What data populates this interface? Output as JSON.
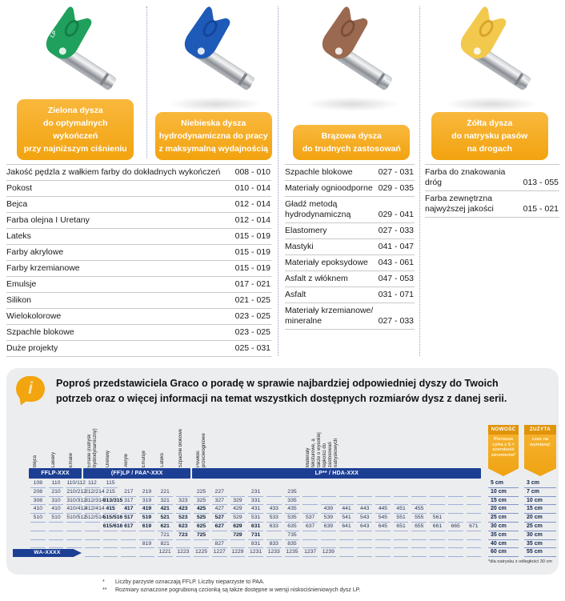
{
  "colors": {
    "accent_orange": "#F2A30F",
    "band_navy": "#1C3F94",
    "table_line_blue": "#9FB2D8",
    "panel_gray": "#ECEDEF"
  },
  "products": [
    {
      "id": "green",
      "tip_color": "#1FA05C",
      "tip_color_dark": "#147D45",
      "handle_text": "LP",
      "label_lines": [
        "Zielona dysza",
        "do optymalnych wykończeń",
        "przy najniższym ciśnieniu"
      ]
    },
    {
      "id": "blue",
      "tip_color": "#1E5AB8",
      "tip_color_dark": "#15459A",
      "handle_text": "",
      "label_lines": [
        "Niebieska dysza",
        "hydrodynamiczna do pracy",
        "z maksymalną wydajnością"
      ]
    },
    {
      "id": "brown",
      "tip_color": "#9A6950",
      "tip_color_dark": "#7C4F3A",
      "handle_text": "",
      "label_lines": [
        "Brązowa dysza",
        "do trudnych zastosowań"
      ]
    },
    {
      "id": "yellow",
      "tip_color": "#F2C94C",
      "tip_color_dark": "#D8A32B",
      "handle_text": "",
      "label_lines": [
        "Żółta dysza",
        "do natrysku pasów",
        "na drogach"
      ]
    }
  ],
  "application_lists": [
    {
      "items": [
        {
          "label": "Jakość pędzla z wałkiem farby do dokładnych wykończeń",
          "value": "008 - 010"
        },
        {
          "label": "Pokost",
          "value": "010 - 014"
        },
        {
          "label": "Bejca",
          "value": "012 - 014"
        },
        {
          "label": "Farba olejna I Uretany",
          "value": "012 - 014"
        },
        {
          "label": "Lateks",
          "value": "015 - 019"
        },
        {
          "label": "Farby akrylowe",
          "value": "015 - 019"
        },
        {
          "label": "Farby krzemianowe",
          "value": "015 - 019"
        },
        {
          "label": "Emulsje",
          "value": "017 - 021"
        },
        {
          "label": "Silikon",
          "value": "021 - 025"
        },
        {
          "label": "Wielokolorowe",
          "value": "023 - 025"
        },
        {
          "label": "Szpachle blokowe",
          "value": "023 - 025"
        },
        {
          "label": "Duże projekty",
          "value": "025 - 031"
        }
      ]
    },
    {
      "items": [
        {
          "label": "Szpachle blokowe",
          "value": "027 - 031"
        },
        {
          "label": "Materiały ognioodporne",
          "value": "029 - 035"
        },
        {
          "label": "Gładź metodą hydrodynamiczną",
          "value": "029 - 041"
        },
        {
          "label": "Elastomery",
          "value": "027 - 033"
        },
        {
          "label": "Mastyki",
          "value": "041 - 047"
        },
        {
          "label": "Materiały epoksydowe",
          "value": "043 - 061"
        },
        {
          "label": "Asfalt z włóknem",
          "value": "047 - 053"
        },
        {
          "label": "Asfalt",
          "value": "031 - 071"
        },
        {
          "label": "Materiały krzemianowe/ mineralne",
          "value": "027 - 033"
        }
      ]
    },
    {
      "items": [
        {
          "label": "Farba do znakowania dróg",
          "value": "013 - 055"
        },
        {
          "label": "Farba zewnętrzna najwyższej jakości",
          "value": "015 - 021"
        }
      ]
    }
  ],
  "info_note": "Poproś przedstawiciela Graco o poradę w sprawie najbardziej odpowiedniej dyszy do Twoich potrzeb oraz o więcej informacji na temat wszystkich dostępnych rozmiarów dysz z danej serii.",
  "size_table": {
    "columns": 25,
    "rotated_headers": [
      {
        "label": "Bejca",
        "col": 1
      },
      {
        "label": "Lakiery",
        "col": 2
      },
      {
        "label": "Emalie",
        "col": 3
      },
      {
        "label": "Emalie (natrysk hydrodynamiczny)",
        "col": 4
      },
      {
        "label": "Uretany",
        "col": 5
      },
      {
        "label": "Akryle",
        "col": 6
      },
      {
        "label": "Emulsje",
        "col": 7
      },
      {
        "label": "Lateks",
        "col": 8
      },
      {
        "label": "Szpachle blokowe",
        "col": 9
      },
      {
        "label": "Powłoki przeciwogniowe",
        "col": 10
      },
      {
        "label": "Materiały teksturowe, a także o wysokiej lepkości do zastosowań natryskowych",
        "col": 16
      }
    ],
    "series_bands": [
      {
        "label": "FFLP-XXX",
        "col": 1,
        "span": 3
      },
      {
        "label": "(FF)LP / PAA*-XXX",
        "col": 4,
        "span": 6
      },
      {
        "label": "LP** / HDA-XXX",
        "col": 10,
        "span": 16
      }
    ],
    "rows": [
      [
        "108",
        "110",
        "110/112",
        "112",
        "115",
        "",
        "",
        "",
        "",
        "",
        "",
        "",
        "",
        "",
        "",
        "",
        "",
        "",
        "",
        "",
        "",
        "",
        "",
        "",
        ""
      ],
      [
        "208",
        "210",
        "210/212",
        "212/214",
        "215",
        "217",
        "219",
        "221",
        "",
        "225",
        "227",
        "",
        "231",
        "",
        "235",
        "",
        "",
        "",
        "",
        "",
        "",
        "",
        "",
        "",
        ""
      ],
      [
        "308",
        "310",
        "310/312",
        "312/314",
        "313/315",
        "317",
        "319",
        "321",
        "323",
        "325",
        "327",
        "329",
        "331",
        "",
        "335",
        "",
        "",
        "",
        "",
        "",
        "",
        "",
        "",
        "",
        ""
      ],
      [
        "410",
        "410",
        "410/412",
        "412/414",
        "415",
        "417",
        "419",
        "421",
        "423",
        "425",
        "427",
        "429",
        "431",
        "433",
        "435",
        "",
        "439",
        "441",
        "443",
        "445",
        "451",
        "455",
        "",
        "",
        ""
      ],
      [
        "510",
        "510",
        "510/512",
        "512/514",
        "515/516",
        "517",
        "519",
        "521",
        "523",
        "525",
        "527",
        "529",
        "531",
        "533",
        "535",
        "537",
        "539",
        "541",
        "543",
        "545",
        "551",
        "555",
        "561",
        "",
        ""
      ],
      [
        "",
        "",
        "",
        "",
        "615/616",
        "617",
        "619",
        "621",
        "623",
        "625",
        "627",
        "629",
        "631",
        "633",
        "635",
        "637",
        "639",
        "641",
        "643",
        "645",
        "651",
        "655",
        "661",
        "665",
        "671"
      ],
      [
        "",
        "",
        "",
        "",
        "",
        "",
        "",
        "721",
        "723",
        "725",
        "",
        "729",
        "731",
        "",
        "735",
        "",
        "",
        "",
        "",
        "",
        "",
        "",
        "",
        "",
        ""
      ],
      [
        "",
        "",
        "",
        "",
        "",
        "",
        "819",
        "821",
        "",
        "",
        "827",
        "",
        "831",
        "833",
        "835",
        "",
        "",
        "",
        "",
        "",
        "",
        "",
        "",
        "",
        ""
      ],
      [
        "",
        "",
        "",
        "",
        "",
        "",
        "",
        "1221",
        "1223",
        "1225",
        "1227",
        "1229",
        "1231",
        "1233",
        "1235",
        "1237",
        "1239",
        "",
        "",
        "",
        "",
        "",
        "",
        "",
        ""
      ]
    ],
    "bold_sizes": [
      "313/315",
      "415",
      "417",
      "419",
      "421",
      "423",
      "425",
      "515/516",
      "517",
      "519",
      "521",
      "523",
      "525",
      "527",
      "615/616",
      "617",
      "619",
      "621",
      "623",
      "625",
      "627",
      "629",
      "631",
      "723",
      "725",
      "729",
      "731"
    ],
    "row_label_badge": "WA-XXXX"
  },
  "fan_width": {
    "new": {
      "ribbon_title": "NOWOŚĆ",
      "ribbon_text": "Pierwsza cyfra x 5 = szerokość strumienia*",
      "values": [
        "5 cm",
        "10 cm",
        "15 cm",
        "20 cm",
        "25 cm",
        "30 cm",
        "35 cm",
        "40 cm",
        "60 cm"
      ]
    },
    "worn": {
      "ribbon_title": "ZUŻYTA",
      "ribbon_text": "czas na wymianę!",
      "values": [
        "3 cm",
        "7 cm",
        "10 cm",
        "15 cm",
        "20 cm",
        "25 cm",
        "30 cm",
        "35 cm",
        "55 cm"
      ]
    },
    "footnote": "*dla natrysku z odległości 30 cm"
  },
  "footnotes": [
    {
      "marker": "*",
      "text": "Liczby parzyste oznaczają FFLP. Liczby nieparzyste to PAA."
    },
    {
      "marker": "**",
      "text": "Rozmiary oznaczone pogrubioną czcionką są także dostępne w wersji niskociśnieniowych dysz LP."
    }
  ]
}
